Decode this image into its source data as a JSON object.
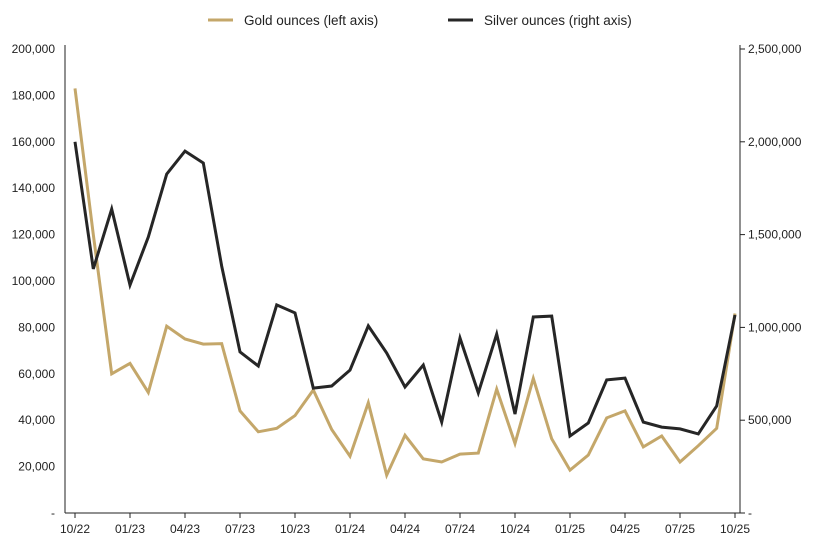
{
  "chart_data": {
    "type": "line",
    "title": "",
    "legend_position": "top",
    "grid": false,
    "x_tick_labels": [
      "10/22",
      "01/23",
      "04/23",
      "07/23",
      "10/23",
      "01/24",
      "04/24",
      "07/24",
      "10/24",
      "01/25",
      "04/25",
      "07/25",
      "10/25"
    ],
    "x": [
      "10/22",
      "11/22",
      "12/22",
      "01/23",
      "02/23",
      "03/23",
      "04/23",
      "05/23",
      "06/23",
      "07/23",
      "08/23",
      "09/23",
      "10/23",
      "11/23",
      "12/23",
      "01/24",
      "02/24",
      "03/24",
      "04/24",
      "05/24",
      "06/24",
      "07/24",
      "08/24",
      "09/24",
      "10/24",
      "11/24",
      "12/24",
      "01/25",
      "02/25",
      "03/25",
      "04/25",
      "05/25",
      "06/25",
      "07/25",
      "08/25",
      "09/25",
      "10/25"
    ],
    "left_axis": {
      "ylim": [
        0,
        200000
      ],
      "tick_labels": [
        "-",
        "20,000",
        "40,000",
        "60,000",
        "80,000",
        "100,000",
        "120,000",
        "140,000",
        "160,000",
        "180,000",
        "200,000"
      ]
    },
    "right_axis": {
      "ylim": [
        0,
        2500000
      ],
      "tick_labels": [
        "-",
        "500,000",
        "1,000,000",
        "1,500,000",
        "2,000,000",
        "2,500,000"
      ]
    },
    "series": [
      {
        "name": "Gold ounces (left axis)",
        "axis": "left",
        "color": "#C4A76A",
        "values": [
          183000,
          120000,
          60000,
          64500,
          52000,
          80500,
          75000,
          72800,
          73000,
          44000,
          35000,
          36500,
          42000,
          53000,
          36000,
          24500,
          47500,
          16300,
          33500,
          23300,
          22000,
          25400,
          25800,
          53400,
          30000,
          58000,
          32000,
          18500,
          25000,
          41000,
          44000,
          28500,
          33200,
          22000,
          29000,
          36500,
          86000
        ]
      },
      {
        "name": "Silver ounces (right axis)",
        "axis": "right",
        "color": "#262626",
        "values": [
          2000000,
          1315000,
          1638000,
          1228000,
          1487000,
          1826000,
          1950000,
          1886000,
          1330000,
          868000,
          792000,
          1121000,
          1078000,
          673000,
          684000,
          770000,
          1008000,
          862000,
          679000,
          797000,
          490000,
          943000,
          647000,
          964000,
          533000,
          1056000,
          1061000,
          415000,
          485000,
          717000,
          727000,
          490000,
          463000,
          453000,
          426000,
          577000,
          1067000
        ]
      }
    ]
  }
}
